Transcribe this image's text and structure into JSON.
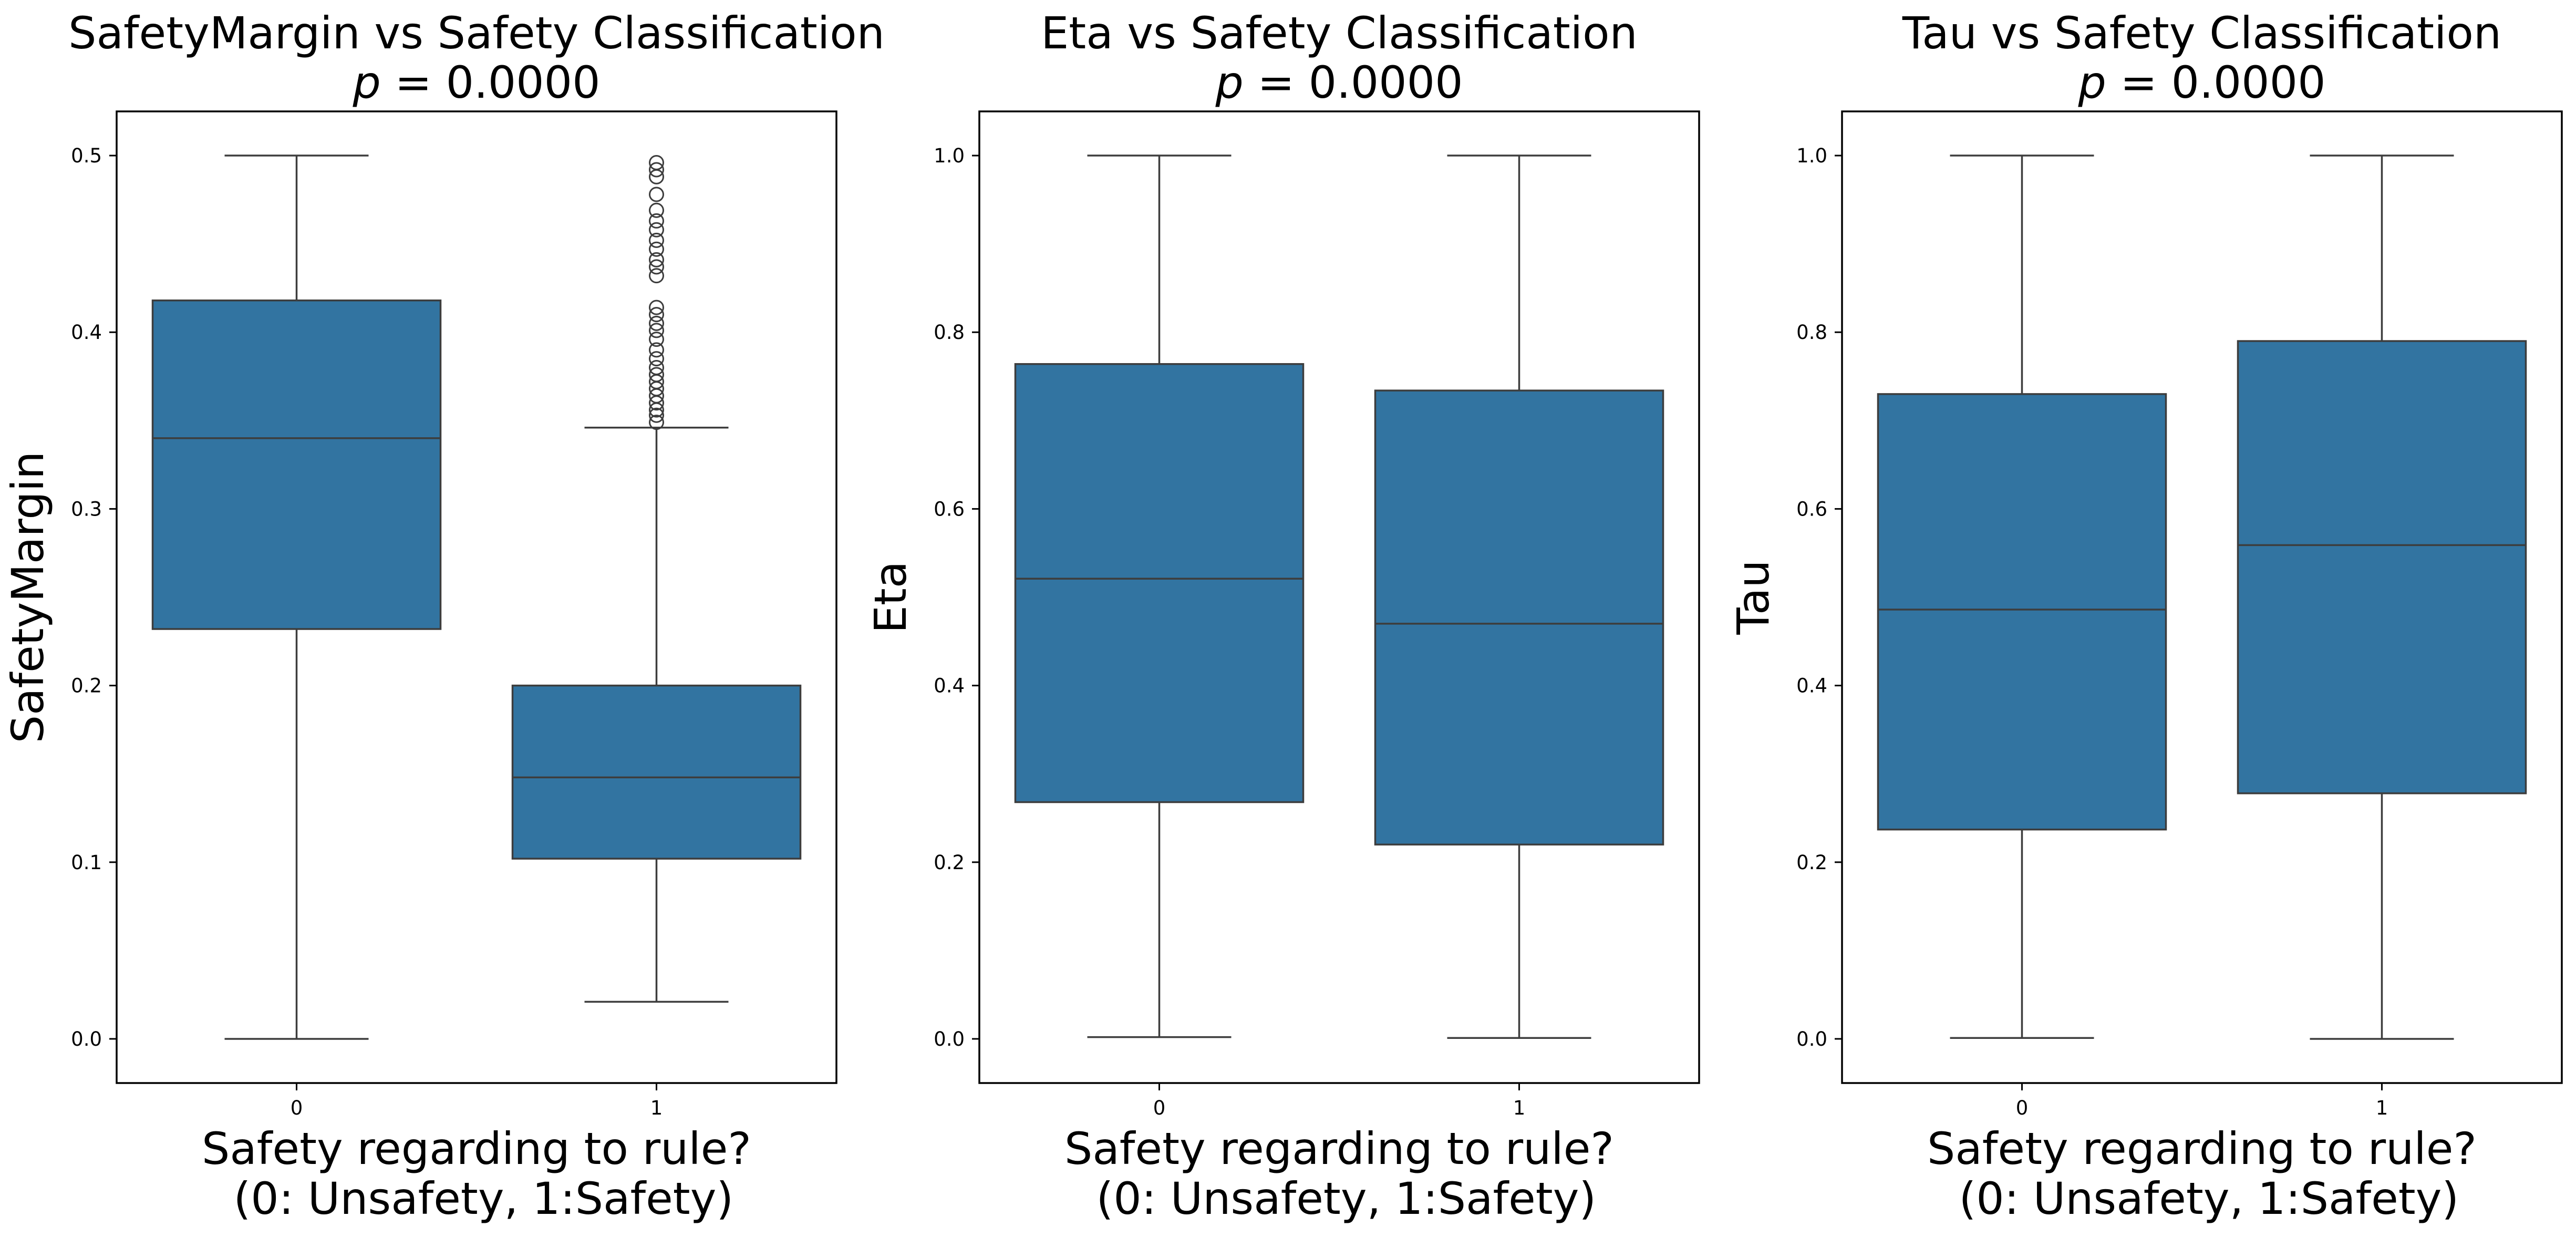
{
  "chart_data": [
    {
      "type": "box",
      "title_main": "SafetyMargin vs Safety Classification",
      "title_p_symbol": "p",
      "title_p_rest": " = 0.0000",
      "xlabel_line1": "Safety regarding to rule?",
      "xlabel_line2": " (0: Unsafety, 1:Safety)",
      "ylabel": "SafetyMargin",
      "ylim": [
        -0.025,
        0.525
      ],
      "yticks": [
        0.0,
        0.1,
        0.2,
        0.3,
        0.4,
        0.5
      ],
      "ytick_labels": [
        "0.0",
        "0.1",
        "0.2",
        "0.3",
        "0.4",
        "0.5"
      ],
      "categories": [
        "0",
        "1"
      ],
      "boxes": [
        {
          "category": "0",
          "whislo": 0.0,
          "q1": 0.232,
          "median": 0.34,
          "q3": 0.418,
          "whishi": 0.5,
          "fliers": []
        },
        {
          "category": "1",
          "whislo": 0.021,
          "q1": 0.102,
          "median": 0.148,
          "q3": 0.2,
          "whishi": 0.346,
          "fliers": [
            0.349,
            0.353,
            0.356,
            0.36,
            0.364,
            0.368,
            0.372,
            0.376,
            0.38,
            0.385,
            0.39,
            0.396,
            0.401,
            0.405,
            0.41,
            0.414,
            0.432,
            0.437,
            0.441,
            0.447,
            0.452,
            0.458,
            0.463,
            0.469,
            0.478,
            0.488,
            0.492,
            0.496
          ]
        }
      ]
    },
    {
      "type": "box",
      "title_main": "Eta vs Safety Classification",
      "title_p_symbol": "p",
      "title_p_rest": " = 0.0000",
      "xlabel_line1": "Safety regarding to rule?",
      "xlabel_line2": " (0: Unsafety, 1:Safety)",
      "ylabel": "Eta",
      "ylim": [
        -0.05,
        1.05
      ],
      "yticks": [
        0.0,
        0.2,
        0.4,
        0.6,
        0.8,
        1.0
      ],
      "ytick_labels": [
        "0.0",
        "0.2",
        "0.4",
        "0.6",
        "0.8",
        "1.0"
      ],
      "categories": [
        "0",
        "1"
      ],
      "boxes": [
        {
          "category": "0",
          "whislo": 0.002,
          "q1": 0.268,
          "median": 0.521,
          "q3": 0.764,
          "whishi": 1.0,
          "fliers": []
        },
        {
          "category": "1",
          "whislo": 0.001,
          "q1": 0.22,
          "median": 0.47,
          "q3": 0.734,
          "whishi": 1.0,
          "fliers": []
        }
      ]
    },
    {
      "type": "box",
      "title_main": "Tau vs Safety Classification",
      "title_p_symbol": "p",
      "title_p_rest": " = 0.0000",
      "xlabel_line1": "Safety regarding to rule?",
      "xlabel_line2": " (0: Unsafety, 1:Safety)",
      "ylabel": "Tau",
      "ylim": [
        -0.05,
        1.05
      ],
      "yticks": [
        0.0,
        0.2,
        0.4,
        0.6,
        0.8,
        1.0
      ],
      "ytick_labels": [
        "0.0",
        "0.2",
        "0.4",
        "0.6",
        "0.8",
        "1.0"
      ],
      "categories": [
        "0",
        "1"
      ],
      "boxes": [
        {
          "category": "0",
          "whislo": 0.001,
          "q1": 0.237,
          "median": 0.486,
          "q3": 0.73,
          "whishi": 1.0,
          "fliers": []
        },
        {
          "category": "1",
          "whislo": 0.0,
          "q1": 0.278,
          "median": 0.559,
          "q3": 0.79,
          "whishi": 1.0,
          "fliers": []
        }
      ]
    }
  ],
  "colors": {
    "box_fill": "#3274a1",
    "line": "#3d3d3d",
    "axes_edge": "#000000",
    "flier_edge": "#3d3d3d"
  }
}
